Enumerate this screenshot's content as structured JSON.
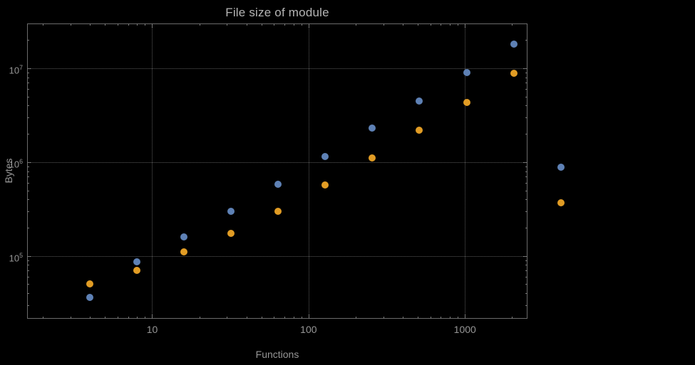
{
  "chart_data": {
    "type": "scatter",
    "title": "File size of module",
    "xlabel": "Functions",
    "ylabel": "Bytes",
    "x_scale": "log",
    "y_scale": "log",
    "xlim": [
      1.585,
      2512
    ],
    "ylim": [
      21400,
      30000000
    ],
    "grid": true,
    "grid_style": "dotted",
    "legend": "none",
    "x": [
      4,
      8,
      16,
      32,
      64,
      128,
      256,
      512,
      1024,
      2048,
      4096
    ],
    "series": [
      {
        "name": "series-1-blue",
        "color": "#5e81b5",
        "values": [
          36000,
          87000,
          160000,
          300000,
          580000,
          1150000,
          2300000,
          4500000,
          9000000,
          18000000,
          880000
        ]
      },
      {
        "name": "series-2-orange",
        "color": "#e19c24",
        "values": [
          50000,
          70000,
          110000,
          175000,
          300000,
          570000,
          1100000,
          2200000,
          4300000,
          8800000,
          370000
        ]
      }
    ],
    "x_ticks": [
      10,
      100,
      1000
    ],
    "x_tick_labels": [
      "10",
      "100",
      "1000"
    ],
    "y_ticks": [
      100000,
      1000000,
      10000000
    ],
    "y_tick_base": "10",
    "y_tick_exponents": [
      5,
      6,
      7
    ],
    "colors": {
      "background": "#000000",
      "frame": "#6b6b6b",
      "grid": "#5a5a5a",
      "tick": "#777777",
      "text": "#969696",
      "title": "#b5b5b5"
    }
  }
}
